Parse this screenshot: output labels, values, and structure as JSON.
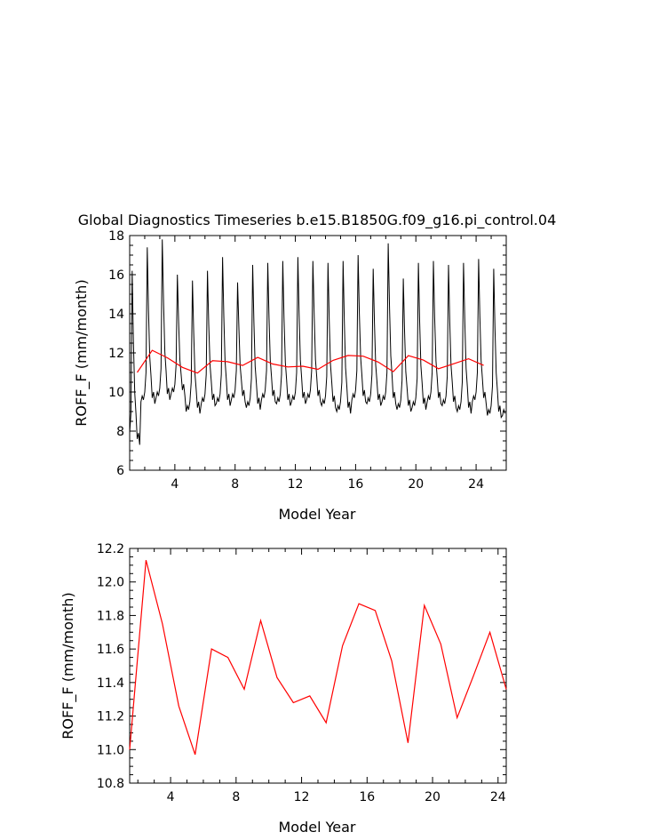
{
  "chart_data": [
    {
      "type": "line",
      "title": "Global Diagnostics Timeseries b.e15.B1850G.f09_g16.pi_control.04",
      "xlabel": "Model Year",
      "ylabel": "ROFF_F (mm/month)",
      "xlim": [
        1,
        26
      ],
      "ylim": [
        6,
        18
      ],
      "xticks": [
        4,
        8,
        12,
        16,
        20,
        24
      ],
      "yticks": [
        6,
        8,
        10,
        12,
        14,
        16,
        18
      ],
      "seasonal": {
        "year_start": 1,
        "peaks": [
          16.2,
          17.4,
          17.8,
          16.0,
          15.7,
          16.2,
          16.9,
          15.6,
          16.5,
          16.6,
          16.7,
          16.9,
          16.7,
          16.6,
          16.7,
          17.0,
          16.3,
          17.6,
          15.8,
          16.6,
          16.7,
          16.5,
          16.6,
          16.8,
          16.3
        ],
        "troughs": [
          7.3,
          9.4,
          9.6,
          9.8,
          8.9,
          9.3,
          9.3,
          9.5,
          9.1,
          9.5,
          9.3,
          9.4,
          9.5,
          9.2,
          8.9,
          9.5,
          9.3,
          9.4,
          9.0,
          9.1,
          9.4,
          9.2,
          8.9,
          9.4,
          8.7
        ]
      },
      "series": [
        {
          "color": "#ff0000",
          "x": [
            1.5,
            2.5,
            3.5,
            4.5,
            5.5,
            6.5,
            7.5,
            8.5,
            9.5,
            10.5,
            11.5,
            12.5,
            13.5,
            14.5,
            15.5,
            16.5,
            17.5,
            18.5,
            19.5,
            20.5,
            21.5,
            22.5,
            23.5,
            24.5
          ],
          "values": [
            11.0,
            12.13,
            11.75,
            11.26,
            10.97,
            11.6,
            11.55,
            11.36,
            11.77,
            11.43,
            11.28,
            11.32,
            11.16,
            11.62,
            11.87,
            11.83,
            11.53,
            11.04,
            11.86,
            11.63,
            11.19,
            11.44,
            11.7,
            11.36
          ]
        }
      ]
    },
    {
      "type": "line",
      "title": "",
      "xlabel": "Model Year",
      "ylabel": "ROFF_F (mm/month)",
      "xlim": [
        1.5,
        24.5
      ],
      "ylim": [
        10.8,
        12.2
      ],
      "xticks": [
        4,
        8,
        12,
        16,
        20,
        24
      ],
      "yticks": [
        10.8,
        11.0,
        11.2,
        11.4,
        11.6,
        11.8,
        12.0,
        12.2
      ],
      "series": [
        {
          "color": "#ff0000",
          "x": [
            1.5,
            2.5,
            3.5,
            4.5,
            5.5,
            6.5,
            7.5,
            8.5,
            9.5,
            10.5,
            11.5,
            12.5,
            13.5,
            14.5,
            15.5,
            16.5,
            17.5,
            18.5,
            19.5,
            20.5,
            21.5,
            22.5,
            23.5,
            24.5
          ],
          "values": [
            11.0,
            12.13,
            11.75,
            11.26,
            10.97,
            11.6,
            11.55,
            11.36,
            11.77,
            11.43,
            11.28,
            11.32,
            11.16,
            11.62,
            11.87,
            11.83,
            11.53,
            11.04,
            11.86,
            11.63,
            11.19,
            11.44,
            11.7,
            11.36
          ]
        }
      ]
    }
  ]
}
